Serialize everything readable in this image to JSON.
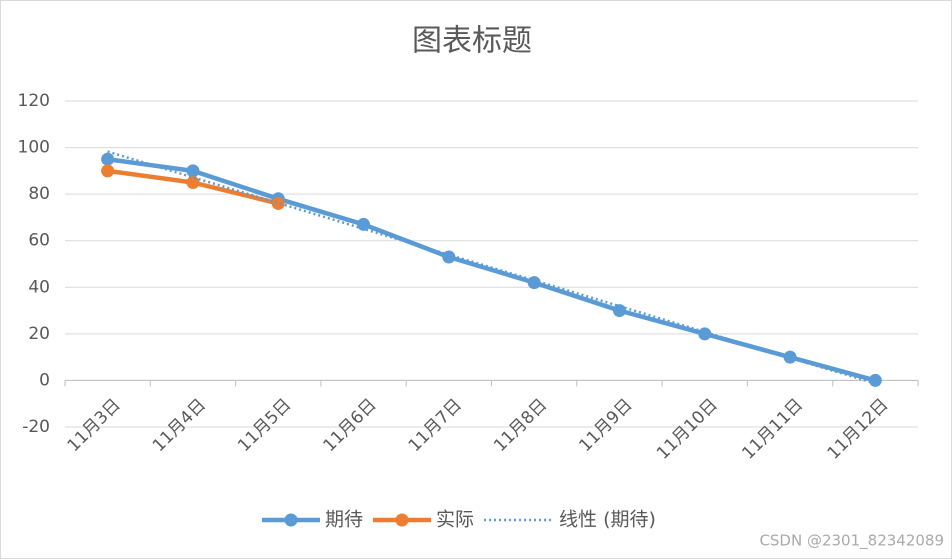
{
  "chart_data": {
    "type": "line",
    "title": "图表标题",
    "categories": [
      "11月3日",
      "11月4日",
      "11月5日",
      "11月6日",
      "11月7日",
      "11月8日",
      "11月9日",
      "11月10日",
      "11月11日",
      "11月12日"
    ],
    "series": [
      {
        "name": "期待",
        "color": "#5b9bd5",
        "line": "solid",
        "marker": true,
        "values": [
          95,
          90,
          78,
          67,
          53,
          42,
          30,
          20,
          10,
          0
        ]
      },
      {
        "name": "实际",
        "color": "#ed7d31",
        "line": "solid",
        "marker": true,
        "values": [
          90,
          85,
          76,
          null,
          null,
          null,
          null,
          null,
          null,
          null
        ]
      },
      {
        "name": "线性 (期待)",
        "color": "#5b9bd5",
        "line": "dotted",
        "marker": false,
        "values": [
          98.3,
          87.2,
          76.2,
          65.1,
          54.0,
          43.0,
          31.9,
          20.8,
          9.7,
          -1.3
        ]
      }
    ],
    "ylim": [
      -20,
      120
    ],
    "yticks": [
      -20,
      0,
      20,
      40,
      60,
      80,
      100,
      120
    ],
    "grid": true,
    "legend": "bottom",
    "watermark": "CSDN @2301_82342089"
  }
}
